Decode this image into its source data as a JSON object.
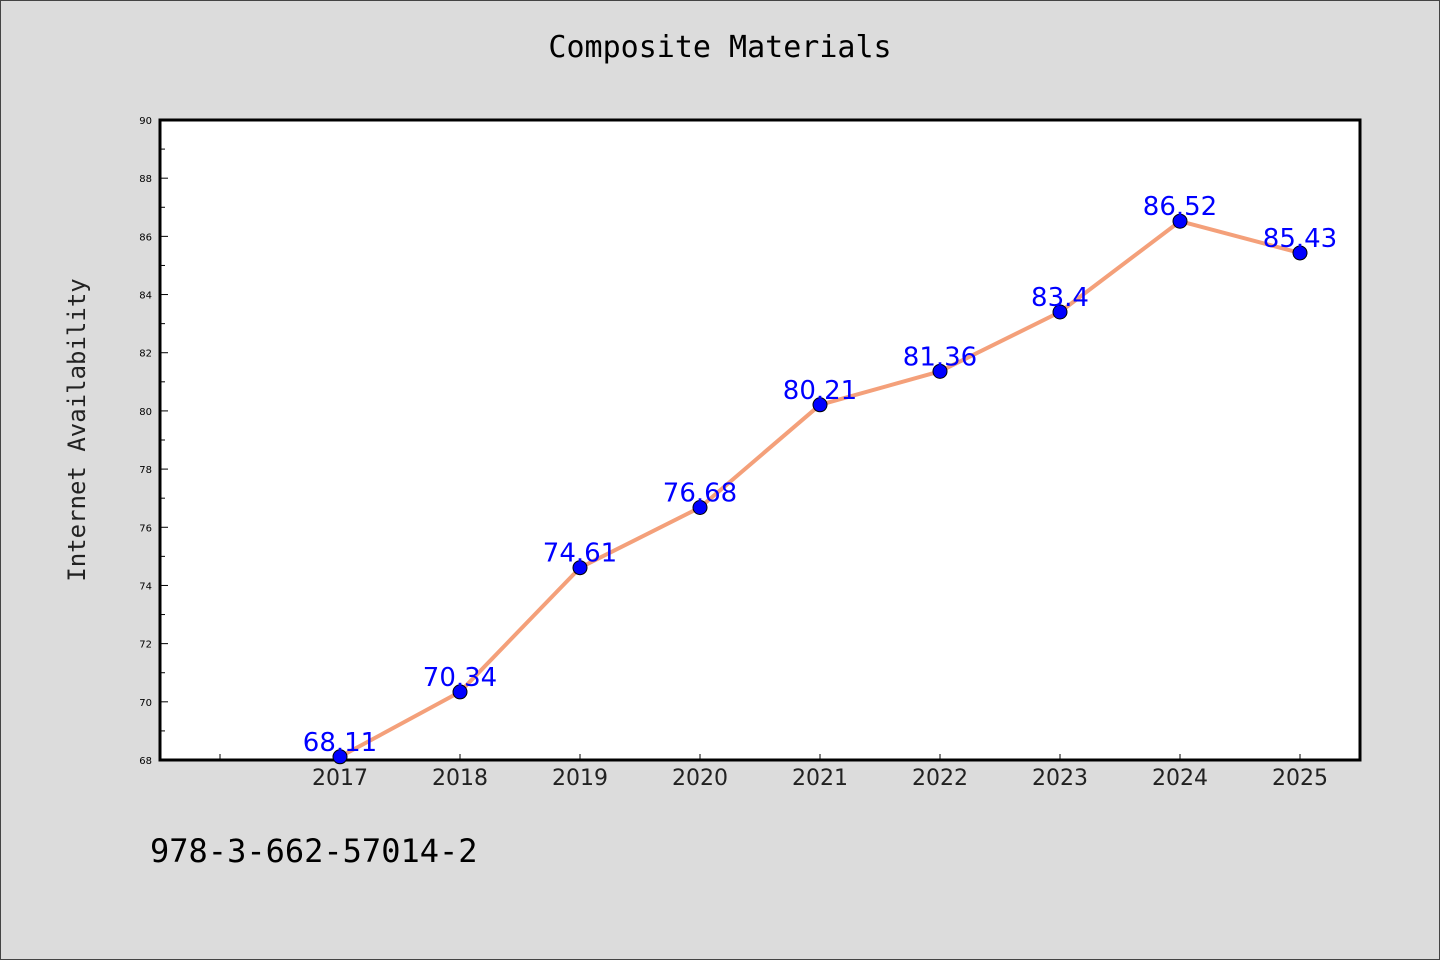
{
  "title": "Composite Materials",
  "footer_code": "978-3-662-57014-2",
  "colors": {
    "background": "#dcdcdc",
    "plot_background": "#ffffff",
    "line": "#f4a07a",
    "marker": "#0000ff",
    "label": "#0000ff"
  },
  "chart_data": {
    "type": "line",
    "title": "Composite Materials",
    "xlabel": "",
    "ylabel": "Internet Availability",
    "categories": [
      "2017",
      "2018",
      "2019",
      "2020",
      "2021",
      "2022",
      "2023",
      "2024",
      "2025"
    ],
    "series": [
      {
        "values": [
          68.11,
          70.34,
          74.61,
          76.68,
          80.21,
          81.36,
          83.4,
          86.52,
          85.43
        ],
        "labels": [
          "68.11",
          "70.34",
          "74.61",
          "76.68",
          "80.21",
          "81.36",
          "83.4",
          "86.52",
          "85.43"
        ]
      }
    ],
    "ylim": [
      68,
      90
    ],
    "yticks": [
      "68",
      "70",
      "72",
      "74",
      "76",
      "78",
      "80",
      "82",
      "84",
      "86",
      "88",
      "90"
    ],
    "grid": false,
    "legend": "none"
  }
}
